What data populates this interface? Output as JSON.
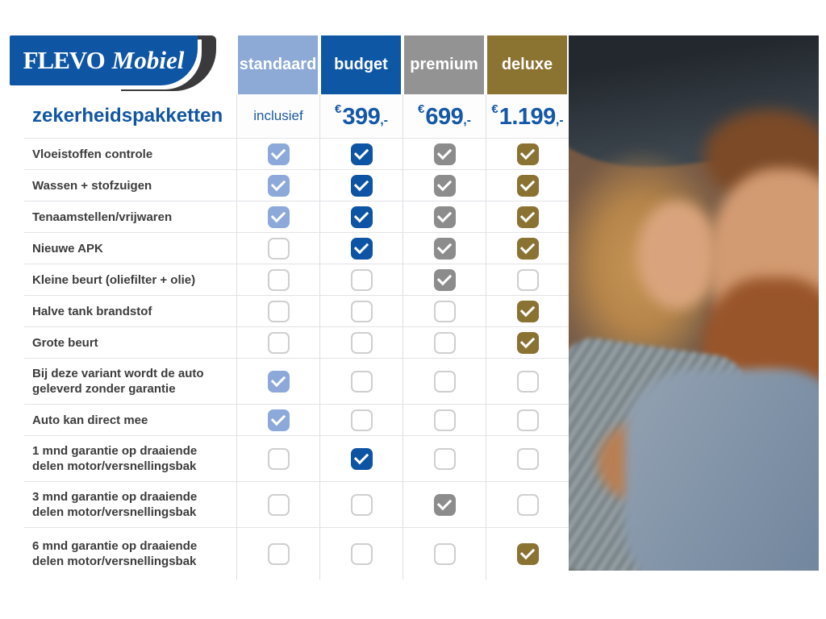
{
  "brand": {
    "name_primary": "FLEVO",
    "name_secondary": "Mobiel"
  },
  "title": "zekerheidspakketten",
  "columns": [
    {
      "id": "standaard",
      "label": "standaard",
      "header_color": "#8da9d6",
      "check_color": "#8ca9d9",
      "price_text": "inclusief",
      "price_currency": "",
      "price_amount": "",
      "price_suffix": ""
    },
    {
      "id": "budget",
      "label": "budget",
      "header_color": "#0e57a5",
      "check_color": "#0d55a4",
      "price_text": "",
      "price_currency": "€",
      "price_amount": "399",
      "price_suffix": ",-"
    },
    {
      "id": "premium",
      "label": "premium",
      "header_color": "#939393",
      "check_color": "#8c8c8c",
      "price_text": "",
      "price_currency": "€",
      "price_amount": "699",
      "price_suffix": ",-"
    },
    {
      "id": "deluxe",
      "label": "deluxe",
      "header_color": "#8b7331",
      "check_color": "#8a7233",
      "price_text": "",
      "price_currency": "€",
      "price_amount": "1.199",
      "price_suffix": ",-"
    }
  ],
  "rows": [
    {
      "label": "Vloeistoffen controle",
      "checks": [
        true,
        true,
        true,
        true
      ]
    },
    {
      "label": "Wassen + stofzuigen",
      "checks": [
        true,
        true,
        true,
        true
      ]
    },
    {
      "label": "Tenaamstellen/vrijwaren",
      "checks": [
        true,
        true,
        true,
        true
      ]
    },
    {
      "label": "Nieuwe APK",
      "checks": [
        false,
        true,
        true,
        true
      ]
    },
    {
      "label": "Kleine beurt (oliefilter + olie)",
      "checks": [
        false,
        false,
        true,
        false
      ]
    },
    {
      "label": "Halve tank brandstof",
      "checks": [
        false,
        false,
        false,
        true
      ]
    },
    {
      "label": "Grote beurt",
      "checks": [
        false,
        false,
        false,
        true
      ]
    },
    {
      "label": "Bij deze variant wordt de auto geleverd zonder garantie",
      "checks": [
        true,
        false,
        false,
        false
      ]
    },
    {
      "label": "Auto kan direct mee",
      "checks": [
        true,
        false,
        false,
        false
      ]
    },
    {
      "label": "1 mnd garantie op draaiende delen motor/versnellingsbak",
      "checks": [
        false,
        true,
        false,
        false
      ]
    },
    {
      "label": "3 mnd garantie op draaiende delen motor/versnellingsbak",
      "checks": [
        false,
        false,
        true,
        false
      ]
    },
    {
      "label": "6 mnd garantie op draaiende delen motor/versnellingsbak",
      "checks": [
        false,
        false,
        false,
        true
      ]
    }
  ],
  "photo": {
    "label": "couple-in-car-photo"
  },
  "colors": {
    "brand_blue": "#0e55a4",
    "brand_dark": "#3a3a3c",
    "price_blue": "#1558a5",
    "unchecked_border": "#cfcfcf"
  },
  "chart_data": {
    "type": "table",
    "title": "zekerheidspakketten",
    "columns": [
      "standaard",
      "budget",
      "premium",
      "deluxe"
    ],
    "prices": [
      "inclusief",
      "€399,-",
      "€699,-",
      "€1.199,-"
    ],
    "rows": [
      {
        "feature": "Vloeistoffen controle",
        "included": [
          true,
          true,
          true,
          true
        ]
      },
      {
        "feature": "Wassen + stofzuigen",
        "included": [
          true,
          true,
          true,
          true
        ]
      },
      {
        "feature": "Tenaamstellen/vrijwaren",
        "included": [
          true,
          true,
          true,
          true
        ]
      },
      {
        "feature": "Nieuwe APK",
        "included": [
          false,
          true,
          true,
          true
        ]
      },
      {
        "feature": "Kleine beurt (oliefilter + olie)",
        "included": [
          false,
          false,
          true,
          false
        ]
      },
      {
        "feature": "Halve tank brandstof",
        "included": [
          false,
          false,
          false,
          true
        ]
      },
      {
        "feature": "Grote beurt",
        "included": [
          false,
          false,
          false,
          true
        ]
      },
      {
        "feature": "Bij deze variant wordt de auto geleverd zonder garantie",
        "included": [
          true,
          false,
          false,
          false
        ]
      },
      {
        "feature": "Auto kan direct mee",
        "included": [
          true,
          false,
          false,
          false
        ]
      },
      {
        "feature": "1 mnd garantie op draaiende delen motor/versnellingsbak",
        "included": [
          false,
          true,
          false,
          false
        ]
      },
      {
        "feature": "3 mnd garantie op draaiende delen motor/versnellingsbak",
        "included": [
          false,
          false,
          true,
          false
        ]
      },
      {
        "feature": "6 mnd garantie op draaiende delen motor/versnellingsbak",
        "included": [
          false,
          false,
          false,
          true
        ]
      }
    ]
  }
}
